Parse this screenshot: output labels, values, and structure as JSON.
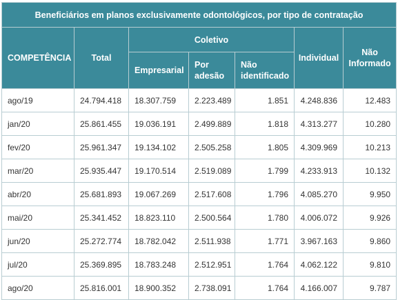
{
  "title": "Beneficiários em planos exclusivamente odontológicos, por tipo de contratação",
  "headers": {
    "competencia": "COMPETÊNCIA",
    "total": "Total",
    "coletivo": "Coletivo",
    "empresarial": "Empresarial",
    "por_adesao": "Por adesão",
    "nao_identificado": "Não identificado",
    "individual": "Individual",
    "nao_informado": "Não Informado"
  },
  "rows": [
    {
      "competencia": "ago/19",
      "total": "24.794.418",
      "empresarial": "18.307.759",
      "por_adesao": "2.223.489",
      "nao_identificado": "1.851",
      "individual": "4.248.836",
      "nao_informado": "12.483"
    },
    {
      "competencia": "jan/20",
      "total": "25.861.455",
      "empresarial": "19.036.191",
      "por_adesao": "2.499.889",
      "nao_identificado": "1.818",
      "individual": "4.313.277",
      "nao_informado": "10.280"
    },
    {
      "competencia": "fev/20",
      "total": "25.961.347",
      "empresarial": "19.134.102",
      "por_adesao": "2.505.258",
      "nao_identificado": "1.805",
      "individual": "4.309.969",
      "nao_informado": "10.213"
    },
    {
      "competencia": "mar/20",
      "total": "25.935.447",
      "empresarial": "19.170.514",
      "por_adesao": "2.519.089",
      "nao_identificado": "1.799",
      "individual": "4.233.913",
      "nao_informado": "10.132"
    },
    {
      "competencia": "abr/20",
      "total": "25.681.893",
      "empresarial": "19.067.269",
      "por_adesao": "2.517.608",
      "nao_identificado": "1.796",
      "individual": "4.085.270",
      "nao_informado": "9.950"
    },
    {
      "competencia": "mai/20",
      "total": "25.341.452",
      "empresarial": "18.823.110",
      "por_adesao": "2.500.564",
      "nao_identificado": "1.780",
      "individual": "4.006.072",
      "nao_informado": "9.926"
    },
    {
      "competencia": "jun/20",
      "total": "25.272.774",
      "empresarial": "18.782.042",
      "por_adesao": "2.511.938",
      "nao_identificado": "1.771",
      "individual": "3.967.163",
      "nao_informado": "9.860"
    },
    {
      "competencia": "jul/20",
      "total": "25.369.895",
      "empresarial": "18.783.248",
      "por_adesao": "2.512.951",
      "nao_identificado": "1.764",
      "individual": "4.062.122",
      "nao_informado": "9.810"
    },
    {
      "competencia": "ago/20",
      "total": "25.816.001",
      "empresarial": "18.900.352",
      "por_adesao": "2.738.091",
      "nao_identificado": "1.764",
      "individual": "4.166.007",
      "nao_informado": "9.787"
    }
  ],
  "colors": {
    "header_bg": "#3b8a9a",
    "header_text": "#ffffff",
    "border": "#b8cdd2"
  }
}
